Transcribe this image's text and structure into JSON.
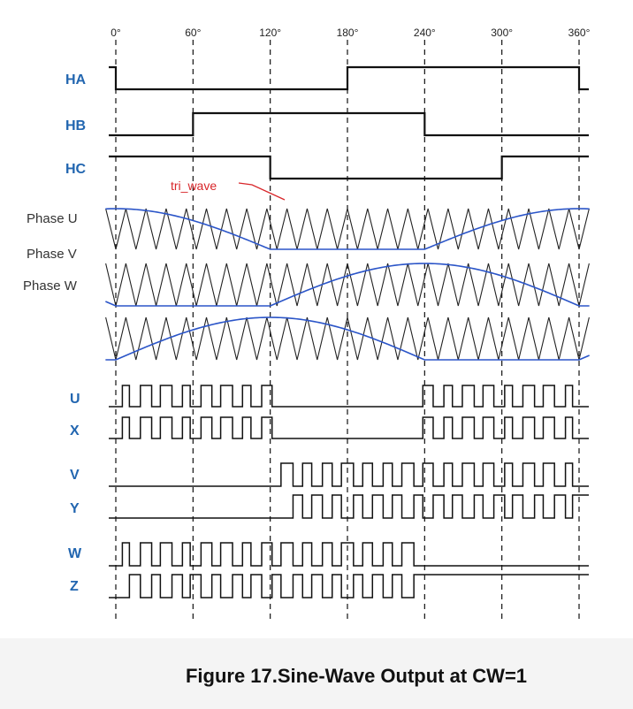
{
  "angle_ticks": [
    "0°",
    "60°",
    "120°",
    "180°",
    "240°",
    "300°",
    "360°"
  ],
  "hall_labels": [
    "HA",
    "HB",
    "HC"
  ],
  "phase_labels": [
    "Phase U",
    "Phase V",
    "Phase W"
  ],
  "annotation": "tri_wave",
  "pwm_labels": [
    "U",
    "X",
    "V",
    "Y",
    "W",
    "Z"
  ],
  "caption": "Figure 17.Sine-Wave Output at CW=1",
  "colors": {
    "label_blue": "#2266b0",
    "sine": "#2b55c8",
    "annotation_red": "#d8262a",
    "trace": "#111111"
  }
}
